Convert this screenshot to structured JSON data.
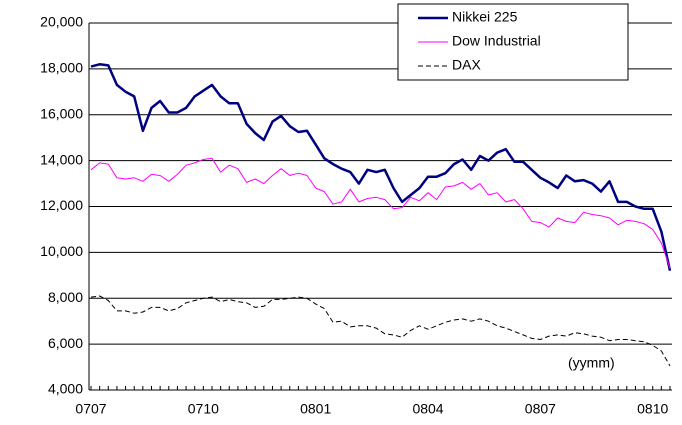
{
  "chart_data": {
    "type": "line",
    "categories": [
      "0707",
      null,
      null,
      null,
      null,
      null,
      null,
      null,
      null,
      null,
      null,
      null,
      null,
      "0710",
      null,
      null,
      null,
      null,
      null,
      null,
      null,
      null,
      null,
      null,
      null,
      null,
      "0801",
      null,
      null,
      null,
      null,
      null,
      null,
      null,
      null,
      null,
      null,
      null,
      null,
      "0804",
      null,
      null,
      null,
      null,
      null,
      null,
      null,
      null,
      null,
      null,
      null,
      null,
      "0807",
      null,
      null,
      null,
      null,
      null,
      null,
      null,
      null,
      null,
      null,
      null,
      null,
      "0810",
      null,
      null
    ],
    "series": [
      {
        "name": "Nikkei 225",
        "color": "#000080",
        "line_style": "solid",
        "values": [
          18100,
          18200,
          18150,
          17300,
          17000,
          16800,
          15300,
          16300,
          16600,
          16100,
          16100,
          16300,
          16800,
          17050,
          17300,
          16800,
          16500,
          16500,
          15600,
          15200,
          14900,
          15700,
          15950,
          15500,
          15250,
          15300,
          14700,
          14100,
          13850,
          13650,
          13500,
          13000,
          13600,
          13500,
          13600,
          12800,
          12200,
          12500,
          12800,
          13300,
          13300,
          13450,
          13850,
          14050,
          13600,
          14200,
          14000,
          14350,
          14500,
          13950,
          13950,
          13600,
          13250,
          13050,
          12800,
          13350,
          13100,
          13150,
          13000,
          12650,
          13100,
          12200,
          12200,
          12000,
          11900,
          11900,
          10900,
          9200
        ]
      },
      {
        "name": "Dow Industrial",
        "color": "#ff00ff",
        "line_style": "solid",
        "values": [
          13600,
          13900,
          13850,
          13250,
          13200,
          13250,
          13100,
          13400,
          13350,
          13100,
          13400,
          13800,
          13900,
          14050,
          14100,
          13500,
          13800,
          13650,
          13050,
          13200,
          13000,
          13350,
          13650,
          13350,
          13450,
          13350,
          12800,
          12650,
          12100,
          12200,
          12750,
          12200,
          12350,
          12400,
          12300,
          11900,
          11950,
          12400,
          12250,
          12600,
          12300,
          12850,
          12900,
          13050,
          12750,
          13000,
          12500,
          12600,
          12200,
          12300,
          11900,
          11350,
          11300,
          11100,
          11500,
          11350,
          11300,
          11750,
          11650,
          11600,
          11500,
          11200,
          11400,
          11350,
          11250,
          11000,
          10400,
          9300
        ]
      },
      {
        "name": "DAX",
        "color": "#000000",
        "line_style": "dashed",
        "values": [
          8050,
          8100,
          7900,
          7450,
          7450,
          7350,
          7400,
          7600,
          7600,
          7450,
          7550,
          7800,
          7900,
          8000,
          8050,
          7850,
          7950,
          7850,
          7800,
          7600,
          7650,
          7950,
          7950,
          8000,
          8050,
          8000,
          7750,
          7550,
          6950,
          7000,
          6750,
          6800,
          6800,
          6700,
          6450,
          6400,
          6300,
          6600,
          6800,
          6650,
          6800,
          6950,
          7050,
          7100,
          7000,
          7100,
          7000,
          6800,
          6700,
          6550,
          6400,
          6250,
          6200,
          6350,
          6400,
          6350,
          6500,
          6450,
          6350,
          6300,
          6150,
          6200,
          6200,
          6150,
          6100,
          5950,
          5700,
          5050
        ]
      }
    ],
    "ylim": [
      4000,
      20000
    ],
    "yticks": [
      {
        "value": 4000,
        "label": "4,000"
      },
      {
        "value": 6000,
        "label": "6,000"
      },
      {
        "value": 8000,
        "label": "8,000"
      },
      {
        "value": 10000,
        "label": "10,000"
      },
      {
        "value": 12000,
        "label": "12,000"
      },
      {
        "value": 14000,
        "label": "14,000"
      },
      {
        "value": 16000,
        "label": "16,000"
      },
      {
        "value": 18000,
        "label": "18,000"
      },
      {
        "value": 20000,
        "label": "20,000"
      }
    ],
    "grid": true,
    "legend": "top-right",
    "annotation": "(yymm)"
  }
}
